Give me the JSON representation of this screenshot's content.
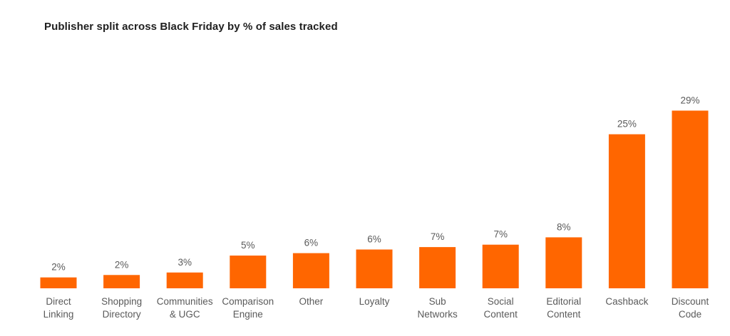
{
  "chart_data": {
    "type": "bar",
    "title": "Publisher split across Black Friday by % of sales tracked",
    "xlabel": "",
    "ylabel": "",
    "ylim": [
      0,
      30
    ],
    "grid": false,
    "legend": "none",
    "value_format": "{v}%",
    "bar_color": "#ff6600",
    "categories": [
      [
        "Direct",
        "Linking"
      ],
      [
        "Shopping",
        "Directory"
      ],
      [
        "Communities",
        "& UGC"
      ],
      [
        "Comparison",
        "Engine"
      ],
      [
        "Other"
      ],
      [
        "Loyalty"
      ],
      [
        "Sub",
        "Networks"
      ],
      [
        "Social",
        "Content"
      ],
      [
        "Editorial",
        "Content"
      ],
      [
        "Cashback"
      ],
      [
        "Discount",
        "Code"
      ]
    ],
    "values": [
      1.8,
      2.2,
      2.6,
      5.4,
      5.8,
      6.4,
      6.8,
      7.2,
      8.4,
      25.4,
      29.3
    ],
    "value_labels": [
      "2%",
      "2%",
      "3%",
      "5%",
      "6%",
      "6%",
      "7%",
      "7%",
      "8%",
      "25%",
      "29%"
    ]
  }
}
